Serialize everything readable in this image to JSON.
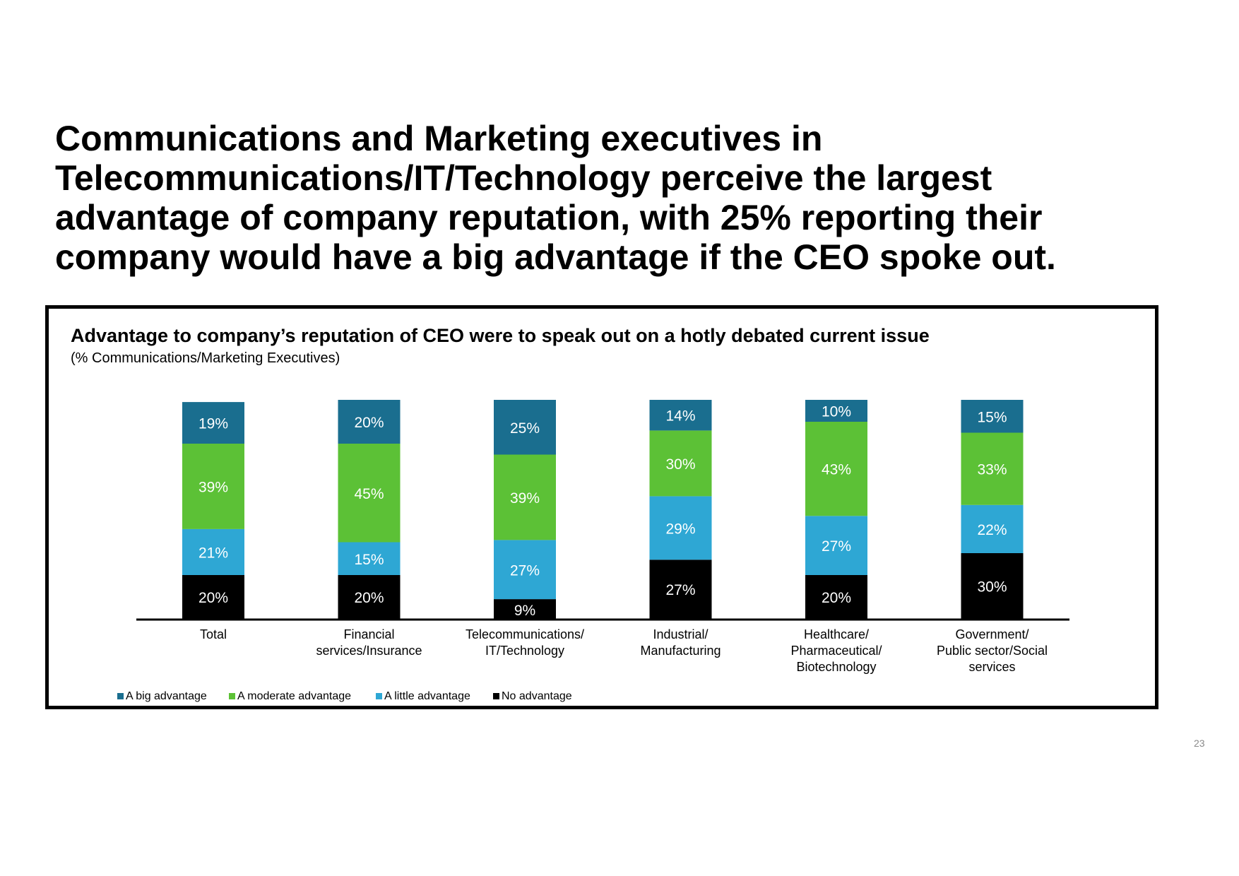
{
  "headline": {
    "lines": [
      "Communications and Marketing executives in",
      "Telecommunications/IT/Technology perceive the largest",
      "advantage of company reputation, with 25% reporting their",
      "company would have a big advantage if the CEO spoke out."
    ]
  },
  "page_number": "23",
  "colors": {
    "big": "#1a6e8f",
    "moderate": "#5cc136",
    "little": "#2ea7d4",
    "none": "#000000"
  },
  "chart_data": {
    "type": "bar",
    "stacked": true,
    "title": "Advantage to company’s reputation of CEO were to speak out on a hotly debated current issue",
    "subtitle": "(% Communications/Marketing Executives)",
    "categories": [
      [
        "Total"
      ],
      [
        "Financial",
        "services/Insurance"
      ],
      [
        "Telecommunications/",
        "IT/Technology"
      ],
      [
        "Industrial/",
        "Manufacturing"
      ],
      [
        "Healthcare/",
        "Pharmaceutical/",
        "Biotechnology"
      ],
      [
        "Government/",
        "Public sector/Social",
        "services"
      ]
    ],
    "series": [
      {
        "key": "none",
        "name": "No advantage",
        "values": [
          20,
          20,
          9,
          27,
          20,
          30
        ],
        "labels": [
          "20%",
          "20%",
          "9%",
          "27%",
          "20%",
          "30%"
        ]
      },
      {
        "key": "little",
        "name": "A little advantage",
        "values": [
          21,
          15,
          27,
          29,
          27,
          22
        ],
        "labels": [
          "21%",
          "15%",
          "27%",
          "29%",
          "27%",
          "22%"
        ]
      },
      {
        "key": "moderate",
        "name": "A moderate advantage",
        "values": [
          39,
          45,
          39,
          30,
          43,
          33
        ],
        "labels": [
          "39%",
          "45%",
          "39%",
          "30%",
          "43%",
          "33%"
        ]
      },
      {
        "key": "big",
        "name": "A big advantage",
        "values": [
          19,
          20,
          25,
          14,
          10,
          15
        ],
        "labels": [
          "19%",
          "20%",
          "25%",
          "14%",
          "10%",
          "15%"
        ]
      }
    ],
    "legend_order": [
      "big",
      "moderate",
      "little",
      "none"
    ],
    "legend_position": "bottom-left",
    "ylim": [
      0,
      100
    ]
  }
}
